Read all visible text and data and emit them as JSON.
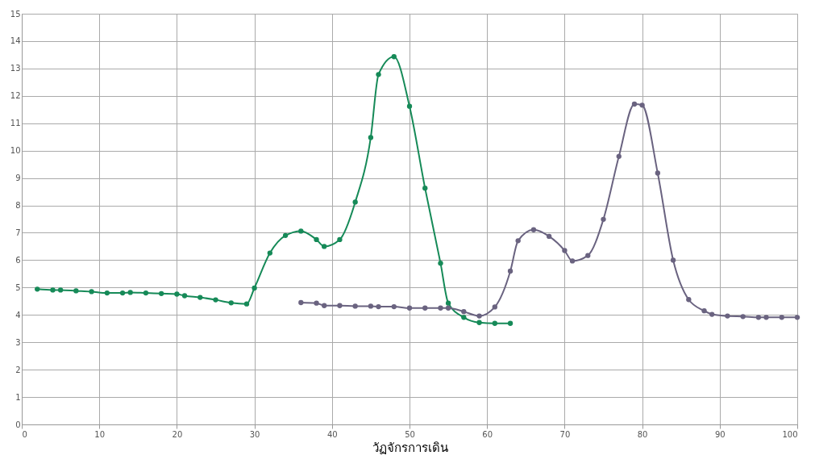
{
  "chart_data": {
    "type": "line",
    "xlabel": "วัฏจักรการเดิน",
    "xlim": [
      0,
      100
    ],
    "xticks": [
      0,
      10,
      20,
      30,
      40,
      50,
      60,
      70,
      80,
      90,
      100
    ],
    "ylim": [
      0,
      15
    ],
    "yticks": [
      0,
      1,
      2,
      3,
      4,
      5,
      6,
      7,
      8,
      9,
      10,
      11,
      12,
      13,
      14,
      15
    ],
    "grid": true,
    "marker": "circle",
    "line_style": "solid",
    "series": [
      {
        "color": "#168a58",
        "x": [
          2,
          4,
          5,
          7,
          9,
          11,
          13,
          14,
          16,
          18,
          20,
          21,
          23,
          25,
          27,
          29,
          30,
          32,
          34,
          36,
          38,
          39,
          41,
          43,
          45,
          46,
          48,
          50,
          52,
          54,
          55,
          57,
          59,
          61,
          63
        ],
        "values": [
          4.94,
          4.91,
          4.91,
          4.88,
          4.85,
          4.8,
          4.8,
          4.82,
          4.8,
          4.78,
          4.76,
          4.7,
          4.64,
          4.55,
          4.44,
          4.4,
          4.98,
          6.26,
          6.9,
          7.06,
          6.75,
          6.5,
          6.75,
          8.12,
          10.48,
          12.78,
          13.43,
          11.62,
          8.63,
          5.89,
          4.43,
          3.91,
          3.72,
          3.69,
          3.69
        ]
      },
      {
        "color": "#6a6380",
        "x": [
          36,
          38,
          39,
          41,
          43,
          45,
          46,
          48,
          50,
          52,
          54,
          55,
          57,
          59,
          61,
          63,
          64,
          66,
          68,
          70,
          71,
          73,
          75,
          77,
          79,
          80,
          82,
          84,
          86,
          88,
          89,
          91,
          93,
          95,
          96,
          98,
          100
        ],
        "values": [
          4.45,
          4.43,
          4.34,
          4.34,
          4.32,
          4.32,
          4.3,
          4.3,
          4.25,
          4.25,
          4.25,
          4.25,
          4.12,
          3.96,
          4.29,
          5.6,
          6.71,
          7.11,
          6.87,
          6.35,
          5.97,
          6.17,
          7.49,
          9.79,
          11.7,
          11.66,
          9.18,
          6.0,
          4.56,
          4.15,
          4.02,
          3.96,
          3.94,
          3.91,
          3.91,
          3.91,
          3.91
        ]
      }
    ]
  }
}
